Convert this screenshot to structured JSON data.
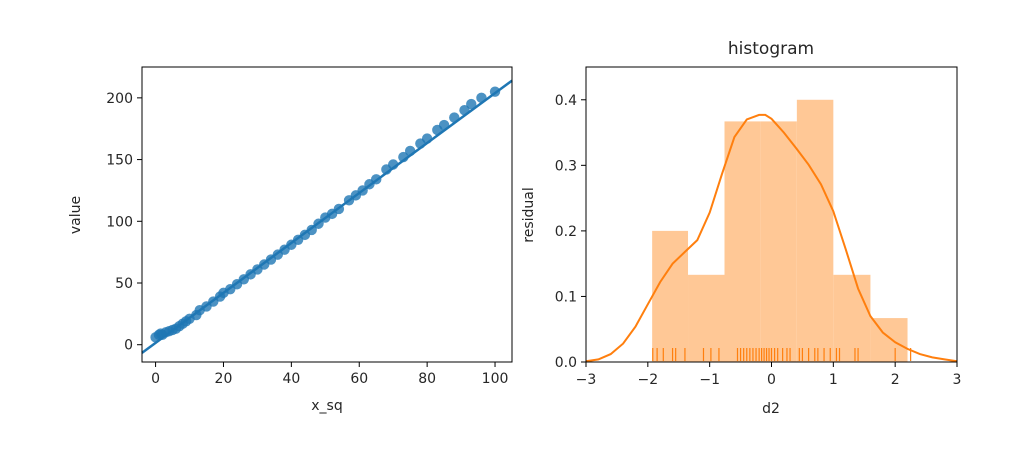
{
  "chart_data": [
    {
      "type": "scatter",
      "title": "",
      "xlabel": "x_sq",
      "ylabel": "value",
      "xlim": [
        -4,
        105
      ],
      "ylim": [
        -14,
        225
      ],
      "xticks": [
        0,
        20,
        40,
        60,
        80,
        100
      ],
      "yticks": [
        0,
        50,
        100,
        150,
        200
      ],
      "grid": false,
      "color": "#1f77b4",
      "fit_line": {
        "x": [
          -4,
          105
        ],
        "y": [
          -6.6,
          214.0
        ]
      },
      "points": {
        "x": [
          0,
          1,
          1.5,
          2,
          3,
          4,
          5,
          6,
          7,
          8,
          9,
          10,
          12,
          13,
          15,
          17,
          19,
          20,
          22,
          24,
          26,
          28,
          30,
          32,
          34,
          36,
          38,
          40,
          42,
          44,
          46,
          48,
          50,
          52,
          54,
          57,
          59,
          61,
          63,
          65,
          68,
          70,
          73,
          75,
          78,
          80,
          83,
          85,
          88,
          91,
          93,
          96,
          100
        ],
        "y": [
          6,
          8,
          9,
          8,
          10,
          11,
          12,
          13,
          15,
          17,
          19,
          21,
          24,
          28,
          31,
          35,
          39,
          42,
          45,
          49,
          53,
          57,
          61,
          65,
          69,
          73,
          77,
          81,
          85,
          89,
          93,
          98,
          103,
          106,
          110,
          117,
          121,
          125,
          130,
          134,
          142,
          146,
          152,
          157,
          163,
          167,
          174,
          178,
          184,
          190,
          195,
          200,
          205
        ]
      }
    },
    {
      "type": "histogram",
      "title": "histogram",
      "xlabel": "d2",
      "ylabel": "residual",
      "xlim": [
        -3,
        3
      ],
      "ylim": [
        0,
        0.45
      ],
      "xticks": [
        -3,
        -2,
        -1,
        0,
        1,
        2,
        3
      ],
      "xtick_labels": [
        "−3",
        "−2",
        "−1",
        "0",
        "1",
        "2",
        "3"
      ],
      "yticks": [
        0.0,
        0.1,
        0.2,
        0.3,
        0.4
      ],
      "ytick_labels": [
        "0.0",
        "0.1",
        "0.2",
        "0.3",
        "0.4"
      ],
      "grid": false,
      "color": "#ff7f0e",
      "bar_color": "#ffc896",
      "bins": [
        {
          "x0": -1.93,
          "x1": -1.35,
          "value": 0.2
        },
        {
          "x0": -1.35,
          "x1": -0.76,
          "value": 0.133
        },
        {
          "x0": -0.76,
          "x1": -0.18,
          "value": 0.367
        },
        {
          "x0": -0.18,
          "x1": 0.41,
          "value": 0.367
        },
        {
          "x0": 0.41,
          "x1": 1.0,
          "value": 0.4
        },
        {
          "x0": 1.0,
          "x1": 1.6,
          "value": 0.133
        },
        {
          "x0": 1.6,
          "x1": 2.2,
          "value": 0.067
        }
      ],
      "kde": {
        "x": [
          -3.0,
          -2.8,
          -2.6,
          -2.4,
          -2.2,
          -2.0,
          -1.8,
          -1.6,
          -1.4,
          -1.2,
          -1.0,
          -0.8,
          -0.6,
          -0.4,
          -0.2,
          -0.1,
          0.0,
          0.2,
          0.4,
          0.6,
          0.8,
          1.0,
          1.2,
          1.4,
          1.6,
          1.8,
          2.0,
          2.2,
          2.4,
          2.6,
          2.8,
          3.0
        ],
        "y": [
          0.001,
          0.004,
          0.012,
          0.028,
          0.054,
          0.088,
          0.122,
          0.15,
          0.168,
          0.186,
          0.228,
          0.287,
          0.343,
          0.37,
          0.377,
          0.377,
          0.371,
          0.35,
          0.326,
          0.301,
          0.271,
          0.23,
          0.172,
          0.112,
          0.07,
          0.045,
          0.03,
          0.02,
          0.012,
          0.007,
          0.004,
          0.001
        ]
      },
      "rug": [
        -1.92,
        -1.85,
        -1.75,
        -1.6,
        -1.55,
        -1.4,
        -1.1,
        -0.98,
        -0.85,
        -0.55,
        -0.5,
        -0.45,
        -0.4,
        -0.35,
        -0.3,
        -0.25,
        -0.2,
        -0.16,
        -0.12,
        -0.08,
        -0.04,
        0.0,
        0.05,
        0.1,
        0.18,
        0.25,
        0.3,
        0.45,
        0.5,
        0.6,
        0.7,
        0.75,
        0.85,
        0.95,
        1.05,
        1.1,
        1.35,
        1.4,
        2.0,
        2.25
      ]
    }
  ]
}
